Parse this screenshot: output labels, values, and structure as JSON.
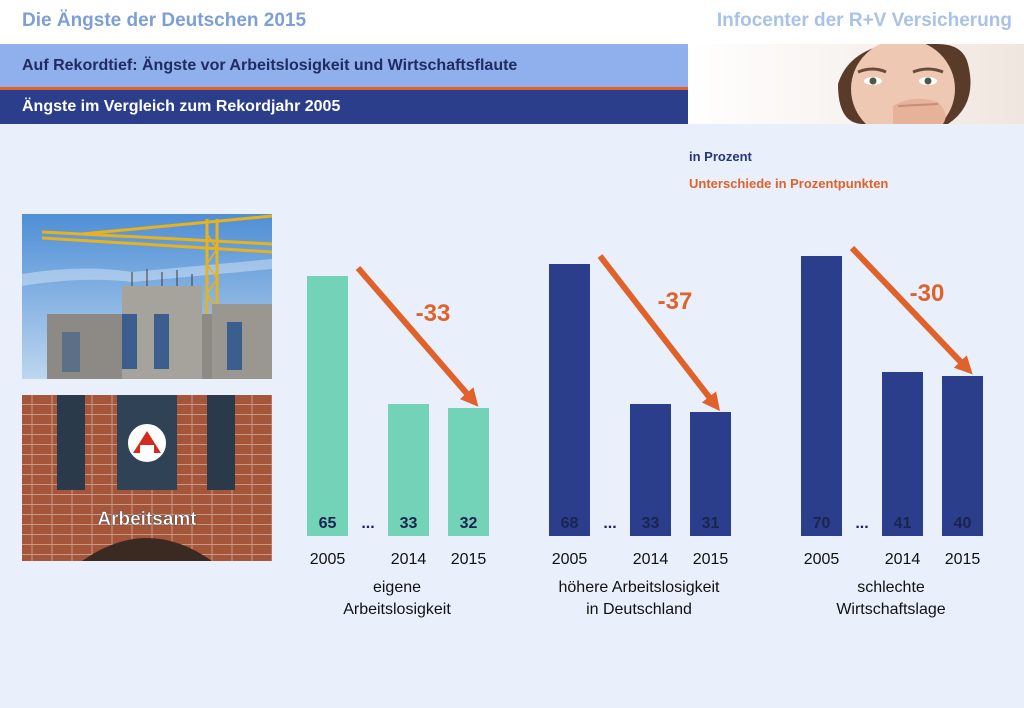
{
  "header": {
    "title": "Die Ängste der Deutschen 2015",
    "source": "Infocenter der R+V Versicherung"
  },
  "bands": {
    "headline": "Auf Rekordtief: Ängste vor Arbeitslosigkeit und Wirtschaftsflaute",
    "subheadline": "Ängste im Vergleich zum Rekordjahr 2005"
  },
  "legend": {
    "unit": "in Prozent",
    "difference": "Unterschiede in Prozentpunkten"
  },
  "photos": {
    "office_sign": "Arbeitsamt"
  },
  "colors": {
    "green": "#72d3b9",
    "navy": "#2b3e8c",
    "orange": "#e0622a"
  },
  "chart_data": {
    "type": "bar",
    "categories": [
      "2005",
      "2014",
      "2015"
    ],
    "ellipsis": "...",
    "groups": [
      {
        "label_line1": "eigene",
        "label_line2": "Arbeitslosigkeit",
        "values": [
          65,
          33,
          32
        ],
        "diff": "-33",
        "color": "green"
      },
      {
        "label_line1": "höhere Arbeitslosigkeit",
        "label_line2": "in Deutschland",
        "values": [
          68,
          33,
          31
        ],
        "diff": "-37",
        "color": "navy"
      },
      {
        "label_line1": "schlechte",
        "label_line2": "Wirtschaftslage",
        "values": [
          70,
          41,
          40
        ],
        "diff": "-30",
        "color": "navy"
      }
    ]
  }
}
